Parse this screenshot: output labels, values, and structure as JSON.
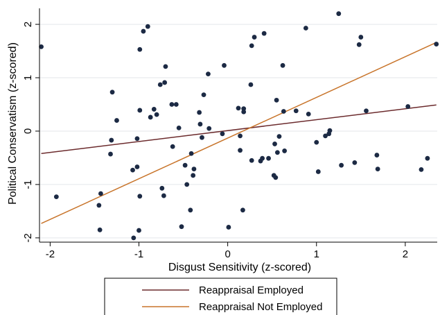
{
  "chart_data": {
    "type": "scatter",
    "title": "",
    "xlabel": "Disgust Sensitivity (z-scored)",
    "ylabel": "Political Conservatism (z-scored)",
    "xlim": [
      -2.12,
      2.36
    ],
    "ylim": [
      -2.08,
      2.3
    ],
    "x_ticks": [
      -2,
      -1,
      0,
      1,
      2
    ],
    "x_tick_labels": [
      "-2",
      "-1",
      "0",
      "1",
      "2"
    ],
    "y_ticks": [
      -2,
      -1,
      0,
      1,
      2
    ],
    "y_tick_labels": [
      "-2",
      "-1",
      "0",
      "1",
      "2"
    ],
    "grid": "horizontal",
    "legend_position": "bottom",
    "colors": {
      "points": "#1c2a44",
      "employed": "#6b2a2c",
      "not_employed": "#c8742a",
      "grid": "#e3e6ea"
    },
    "points": [
      [
        -2.1,
        1.58
      ],
      [
        -1.93,
        -1.23
      ],
      [
        -1.45,
        -1.39
      ],
      [
        -1.44,
        -1.85
      ],
      [
        -1.43,
        -1.17
      ],
      [
        -1.32,
        -0.43
      ],
      [
        -1.31,
        -0.17
      ],
      [
        -1.3,
        0.73
      ],
      [
        -1.25,
        0.2
      ],
      [
        -1.07,
        -0.73
      ],
      [
        -1.06,
        -2.0
      ],
      [
        -1.02,
        -0.67
      ],
      [
        -1.02,
        -0.14
      ],
      [
        -1.0,
        -1.86
      ],
      [
        -0.99,
        0.39
      ],
      [
        -0.99,
        -1.22
      ],
      [
        -0.99,
        1.53
      ],
      [
        -0.95,
        1.87
      ],
      [
        -0.9,
        1.96
      ],
      [
        -0.87,
        0.26
      ],
      [
        -0.83,
        0.41
      ],
      [
        -0.8,
        0.31
      ],
      [
        -0.76,
        0.87
      ],
      [
        -0.74,
        -1.07
      ],
      [
        -0.72,
        -1.21
      ],
      [
        -0.71,
        0.91
      ],
      [
        -0.7,
        1.21
      ],
      [
        -0.63,
        0.5
      ],
      [
        -0.62,
        -0.29
      ],
      [
        -0.58,
        0.5
      ],
      [
        -0.55,
        0.06
      ],
      [
        -0.52,
        -1.79
      ],
      [
        -0.48,
        -0.64
      ],
      [
        -0.46,
        -1.0
      ],
      [
        -0.42,
        -1.48
      ],
      [
        -0.41,
        -0.42
      ],
      [
        -0.39,
        -0.83
      ],
      [
        -0.38,
        -0.71
      ],
      [
        -0.32,
        0.35
      ],
      [
        -0.31,
        0.13
      ],
      [
        -0.29,
        -0.12
      ],
      [
        -0.27,
        0.68
      ],
      [
        -0.22,
        1.07
      ],
      [
        -0.21,
        0.05
      ],
      [
        -0.06,
        -0.05
      ],
      [
        -0.04,
        1.23
      ],
      [
        0.01,
        -1.8
      ],
      [
        0.12,
        0.43
      ],
      [
        0.14,
        -0.36
      ],
      [
        0.14,
        -0.09
      ],
      [
        0.17,
        -1.48
      ],
      [
        0.18,
        0.42
      ],
      [
        0.18,
        0.36
      ],
      [
        0.26,
        0.87
      ],
      [
        0.27,
        1.6
      ],
      [
        0.27,
        -0.55
      ],
      [
        0.3,
        1.76
      ],
      [
        0.37,
        -0.56
      ],
      [
        0.39,
        -0.51
      ],
      [
        0.41,
        1.83
      ],
      [
        0.46,
        -0.51
      ],
      [
        0.52,
        -0.83
      ],
      [
        0.53,
        -0.24
      ],
      [
        0.54,
        -0.87
      ],
      [
        0.55,
        0.58
      ],
      [
        0.56,
        -0.4
      ],
      [
        0.58,
        -0.1
      ],
      [
        0.62,
        1.23
      ],
      [
        0.63,
        0.37
      ],
      [
        0.64,
        -0.37
      ],
      [
        0.77,
        0.38
      ],
      [
        0.88,
        1.93
      ],
      [
        0.91,
        0.32
      ],
      [
        1.0,
        -0.21
      ],
      [
        1.02,
        -0.76
      ],
      [
        1.1,
        -0.09
      ],
      [
        1.14,
        -0.05
      ],
      [
        1.15,
        0.01
      ],
      [
        1.25,
        2.2
      ],
      [
        1.28,
        -0.64
      ],
      [
        1.43,
        -0.59
      ],
      [
        1.48,
        1.62
      ],
      [
        1.5,
        1.76
      ],
      [
        1.56,
        0.38
      ],
      [
        1.68,
        -0.45
      ],
      [
        1.69,
        -0.71
      ],
      [
        2.03,
        0.46
      ],
      [
        2.18,
        -0.72
      ],
      [
        2.25,
        -0.51
      ],
      [
        2.35,
        1.63
      ]
    ],
    "series": [
      {
        "name": "Reappraisal Employed",
        "x": [
          -2.1,
          2.35
        ],
        "y": [
          -0.42,
          0.49
        ]
      },
      {
        "name": "Reappraisal Not Employed",
        "x": [
          -2.1,
          2.35
        ],
        "y": [
          -1.73,
          1.66
        ]
      }
    ]
  }
}
